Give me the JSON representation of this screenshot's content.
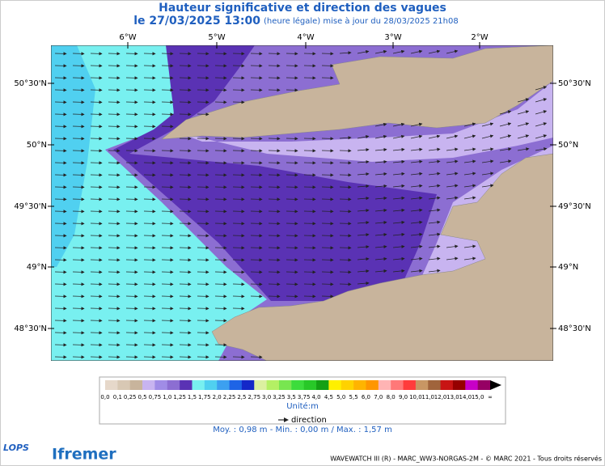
{
  "header": {
    "title": "Hauteur significative et direction des vagues",
    "date": "le 27/03/2025 13:00",
    "update": "(heure légale) mise à jour du 28/03/2025 21h08"
  },
  "map": {
    "lon_labels": [
      "6°W",
      "5°W",
      "4°W",
      "3°W",
      "2°W"
    ],
    "lat_labels": [
      "50°30'N",
      "50°N",
      "49°30'N",
      "49°N",
      "48°30'N"
    ]
  },
  "legend": {
    "labels": [
      "0,0",
      "0,1",
      "0,25",
      "0,5",
      "0,75",
      "1,0",
      "1,25",
      "1,5",
      "1,75",
      "2,0",
      "2,25",
      "2,5",
      "2,75",
      "3,0",
      "3,25",
      "3,5",
      "3,75",
      "4,0",
      "4,5",
      "5,0",
      "5,5",
      "6,0",
      "7,0",
      "8,0",
      "9,0",
      "10,0",
      "11,0",
      "12,0",
      "13,0",
      "14,0",
      "15,0",
      "∞"
    ],
    "colors": [
      "#e6d8ca",
      "#d8c8b4",
      "#c8b49c",
      "#c8b4f0",
      "#a08ce6",
      "#8c6ed2",
      "#5a32b4",
      "#78f0f0",
      "#50d0f0",
      "#3ca0f0",
      "#1e64e6",
      "#1428c8",
      "#dcf0a0",
      "#b4f064",
      "#78e650",
      "#3cdc3c",
      "#28c828",
      "#14a014",
      "#fff000",
      "#ffd200",
      "#ffb400",
      "#ff9600",
      "#ffb4b4",
      "#ff7878",
      "#ff3c3c",
      "#c89664",
      "#a0643c",
      "#c81414",
      "#960000",
      "#c800c8",
      "#960064"
    ],
    "unit": "Unité:m",
    "direction": "direction",
    "stats": "Moy. : 0,98 m   -   Min. : 0,00 m / Max. : 1,57 m"
  },
  "footer": {
    "logo1": "LOPS",
    "logo2": "Ifremer",
    "credit": "WAVEWATCH III (R) - MARC_WW3-NORGAS-2M - © MARC 2021 - Tous droits réservés"
  }
}
